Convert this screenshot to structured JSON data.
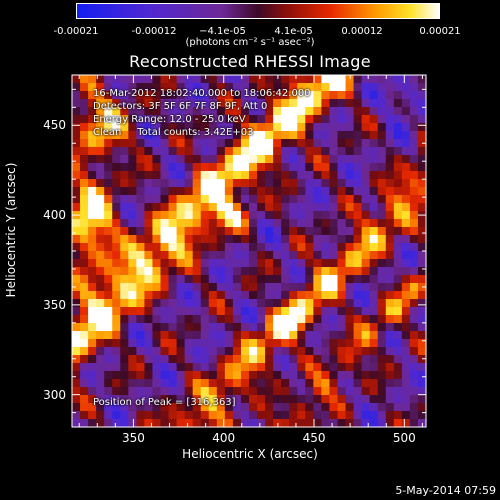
{
  "colorbar": {
    "ticks": [
      "-0.00021",
      "-0.00012",
      "−4.1e-05",
      "4.1e-05",
      "0.00012",
      "0.00021"
    ],
    "tick_values": [
      -0.00021,
      -0.00012,
      -4.1e-05,
      4.1e-05,
      0.00012,
      0.00021
    ],
    "range": [
      -0.00021,
      0.00021
    ],
    "units_label": "(photons cm⁻² s⁻¹ asec⁻²)",
    "colormap": "blue-purple-red-orange-yellow-white"
  },
  "chart_data": {
    "type": "heatmap",
    "title": "Reconstructed RHESSI Image",
    "xlabel": "Heliocentric X (arcsec)",
    "ylabel": "Heliocentric Y (arcsec)",
    "xlim": [
      316,
      512
    ],
    "ylim": [
      282,
      478
    ],
    "x_ticks": [
      350,
      400,
      450,
      500
    ],
    "y_ticks": [
      300,
      350,
      400,
      450
    ],
    "peak_position": [
      316,
      363
    ],
    "annotations": [
      "16-Mar-2012 18:02:40.000 to 18:06:42.000",
      "Detectors: 3F 5F 6F 7F 8F 9F, Att 0",
      "Energy Range: 12.0 - 25.0 keV",
      "Clean     Total counts: 3.42E+03"
    ],
    "peak_label": "Position of Peak = [316,363]",
    "footer_date": "5-May-2014 07:59"
  }
}
